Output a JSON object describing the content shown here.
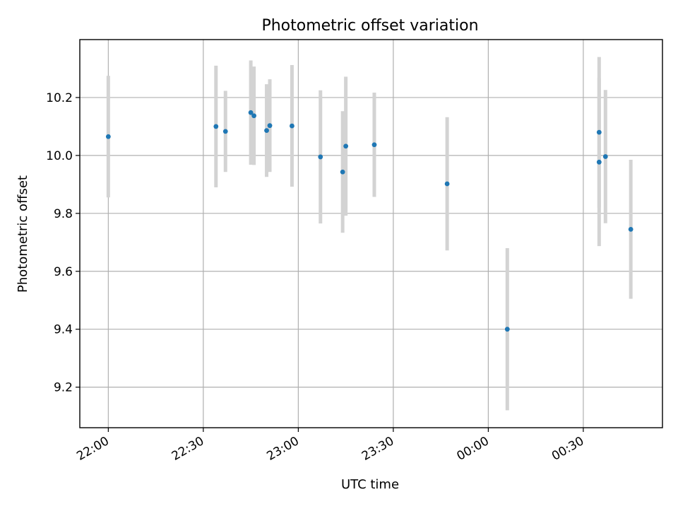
{
  "chart_data": {
    "type": "scatter",
    "title": "Photometric offset variation",
    "xlabel": "UTC time",
    "ylabel": "Photometric offset",
    "xlim": [
      "21:51",
      "00:55"
    ],
    "ylim": [
      9.06,
      10.4
    ],
    "x_ticks": [
      "22:00",
      "22:30",
      "23:00",
      "23:30",
      "00:00",
      "00:30"
    ],
    "y_ticks": [
      "9.2",
      "9.4",
      "9.6",
      "9.8",
      "10.0",
      "10.2"
    ],
    "grid": true,
    "colors": {
      "point": "#1f77b4",
      "errorbar": "#d3d3d3",
      "grid": "#b0b0b0"
    },
    "points": [
      {
        "x": "22:00",
        "y": 10.065,
        "err": 0.21
      },
      {
        "x": "22:34",
        "y": 10.1,
        "err": 0.21
      },
      {
        "x": "22:37",
        "y": 10.083,
        "err": 0.14
      },
      {
        "x": "22:45",
        "y": 10.148,
        "err": 0.18
      },
      {
        "x": "22:46",
        "y": 10.137,
        "err": 0.17
      },
      {
        "x": "22:50",
        "y": 10.086,
        "err": 0.16
      },
      {
        "x": "22:51",
        "y": 10.103,
        "err": 0.16
      },
      {
        "x": "22:58",
        "y": 10.102,
        "err": 0.21
      },
      {
        "x": "23:07",
        "y": 9.995,
        "err": 0.23
      },
      {
        "x": "23:14",
        "y": 9.943,
        "err": 0.21
      },
      {
        "x": "23:15",
        "y": 10.032,
        "err": 0.24
      },
      {
        "x": "23:24",
        "y": 10.037,
        "err": 0.18
      },
      {
        "x": "23:47",
        "y": 9.902,
        "err": 0.23
      },
      {
        "x": "00:06",
        "y": 9.4,
        "err": 0.28
      },
      {
        "x": "00:35",
        "y": 10.08,
        "err": 0.26
      },
      {
        "x": "00:35",
        "y": 9.977,
        "err": 0.29
      },
      {
        "x": "00:37",
        "y": 9.996,
        "err": 0.23
      },
      {
        "x": "00:45",
        "y": 9.745,
        "err": 0.24
      }
    ]
  }
}
